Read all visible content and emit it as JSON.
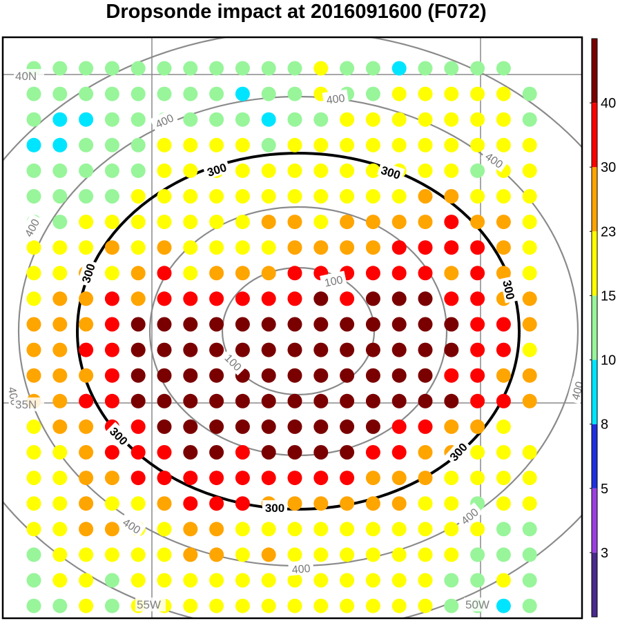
{
  "title": "Dropsonde impact at 2016091600 (F072)",
  "map": {
    "lat_labels": [
      "40N",
      "35N"
    ],
    "lon_labels": [
      "55W",
      "50W"
    ],
    "contours": [
      {
        "label": "100",
        "style": "thin-gray"
      },
      {
        "label": "300",
        "style": "thick-black"
      },
      {
        "label": "400",
        "style": "thin-gray"
      }
    ]
  },
  "colorbar": {
    "labels": [
      "40",
      "30",
      "23",
      "15",
      "10",
      "8",
      "5",
      "3"
    ],
    "colors": [
      "#4a2a8c",
      "#9b3fe0",
      "#1f2fe0",
      "#00e5ff",
      "#98f59a",
      "#ffff00",
      "#ffa500",
      "#ff0000",
      "#7a0000"
    ]
  },
  "chart_data": {
    "type": "scatter",
    "description_levels": "impact category per dropsonde: 0=<3,1=3-5,2=5-8,3=8-10,4=10-15,5=15-23,6=23-30,7=30-40,8=>40",
    "rows": [
      [
        4,
        4,
        4,
        4,
        4,
        4,
        4,
        4,
        4,
        4,
        4,
        5,
        4,
        4,
        3,
        4,
        4,
        4,
        4
      ],
      [
        4,
        4,
        4,
        4,
        4,
        4,
        4,
        4,
        3,
        4,
        4,
        5,
        4,
        4,
        5,
        5,
        5,
        5,
        5,
        4
      ],
      [
        4,
        3,
        3,
        4,
        4,
        4,
        4,
        4,
        4,
        3,
        4,
        4,
        5,
        5,
        5,
        5,
        5,
        5,
        5,
        4
      ],
      [
        3,
        3,
        4,
        4,
        4,
        5,
        5,
        5,
        5,
        4,
        5,
        5,
        5,
        5,
        5,
        5,
        5,
        5,
        5,
        5
      ],
      [
        4,
        4,
        4,
        4,
        4,
        5,
        5,
        5,
        5,
        5,
        5,
        5,
        5,
        5,
        5,
        5,
        5,
        4,
        5,
        5
      ],
      [
        4,
        4,
        4,
        4,
        5,
        5,
        5,
        5,
        5,
        5,
        5,
        5,
        5,
        5,
        5,
        6,
        6,
        5,
        5,
        5
      ],
      [
        4,
        4,
        5,
        5,
        5,
        5,
        5,
        5,
        5,
        6,
        6,
        5,
        6,
        6,
        6,
        6,
        7,
        6,
        6,
        5
      ],
      [
        5,
        5,
        5,
        6,
        5,
        6,
        5,
        5,
        5,
        5,
        6,
        6,
        6,
        6,
        7,
        7,
        7,
        7,
        6,
        5
      ],
      [
        5,
        5,
        6,
        5,
        6,
        7,
        5,
        6,
        6,
        6,
        7,
        7,
        7,
        7,
        7,
        7,
        6,
        7,
        6,
        5
      ],
      [
        5,
        6,
        6,
        7,
        6,
        7,
        7,
        7,
        7,
        7,
        7,
        8,
        7,
        8,
        8,
        8,
        7,
        7,
        6,
        6
      ],
      [
        6,
        6,
        6,
        7,
        8,
        8,
        8,
        8,
        8,
        8,
        8,
        8,
        8,
        8,
        8,
        8,
        8,
        7,
        7,
        6
      ],
      [
        6,
        6,
        7,
        7,
        8,
        8,
        8,
        8,
        8,
        8,
        8,
        8,
        8,
        8,
        8,
        8,
        8,
        7,
        7,
        5
      ],
      [
        6,
        6,
        6,
        7,
        8,
        8,
        8,
        8,
        8,
        8,
        8,
        8,
        8,
        8,
        8,
        8,
        7,
        7,
        6,
        6
      ],
      [
        6,
        6,
        7,
        7,
        8,
        8,
        8,
        8,
        8,
        8,
        8,
        8,
        8,
        8,
        8,
        8,
        8,
        7,
        7,
        6
      ],
      [
        5,
        6,
        6,
        7,
        7,
        8,
        8,
        8,
        8,
        8,
        8,
        8,
        8,
        8,
        7,
        7,
        6,
        6,
        5
      ],
      [
        5,
        5,
        6,
        7,
        7,
        7,
        8,
        8,
        7,
        8,
        8,
        8,
        8,
        7,
        7,
        6,
        6,
        5,
        5,
        5
      ],
      [
        5,
        5,
        6,
        6,
        7,
        7,
        7,
        7,
        7,
        7,
        7,
        7,
        7,
        6,
        6,
        6,
        5,
        5,
        5,
        5
      ],
      [
        5,
        5,
        6,
        5,
        5,
        6,
        7,
        7,
        7,
        6,
        6,
        6,
        6,
        6,
        6,
        5,
        5,
        4,
        5,
        5
      ],
      [
        5,
        5,
        6,
        6,
        5,
        5,
        6,
        6,
        5,
        5,
        5,
        5,
        5,
        5,
        5,
        5,
        5,
        5,
        4,
        4
      ],
      [
        4,
        5,
        5,
        5,
        5,
        5,
        6,
        6,
        5,
        6,
        5,
        5,
        5,
        5,
        5,
        5,
        5,
        4,
        4,
        4
      ],
      [
        4,
        5,
        5,
        4,
        5,
        5,
        5,
        5,
        5,
        5,
        5,
        5,
        5,
        5,
        5,
        5,
        4,
        4,
        5,
        4
      ],
      [
        4,
        4,
        5,
        4,
        5,
        5,
        5,
        5,
        5,
        5,
        5,
        5,
        5,
        5,
        5,
        5,
        4,
        4,
        3,
        4
      ]
    ]
  }
}
